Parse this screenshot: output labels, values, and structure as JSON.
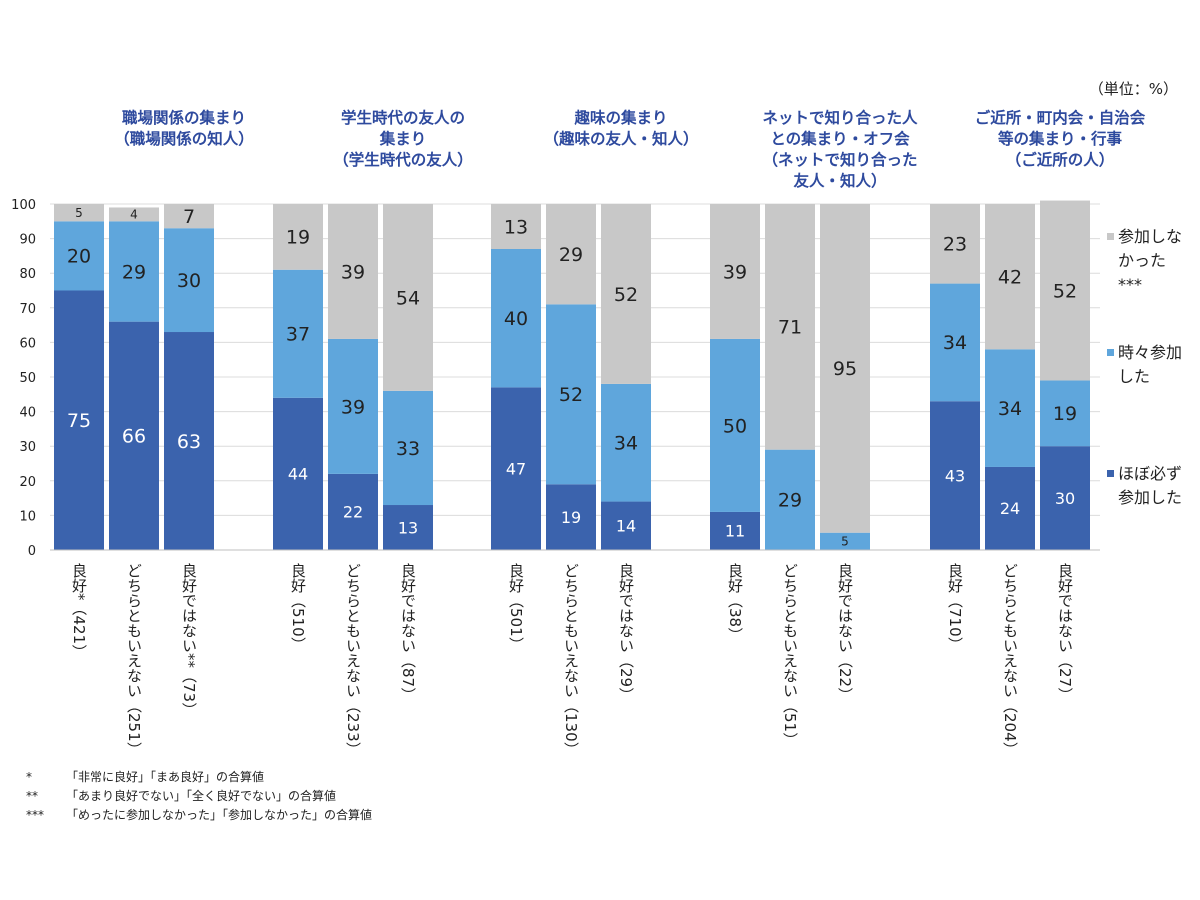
{
  "unit_label": "（単位：%）",
  "colors": {
    "always": "#3b63ad",
    "sometimes": "#5fa6dc",
    "none": "#c8c8c8",
    "group_title": "#2e4a9e"
  },
  "chart_data": {
    "type": "bar",
    "stacked": true,
    "ylim": [
      0,
      100
    ],
    "yticks": [
      0,
      10,
      20,
      30,
      40,
      50,
      60,
      70,
      80,
      90,
      100
    ],
    "grid": true,
    "legend_position": "right",
    "legend": [
      {
        "key": "none",
        "label_lines": [
          "参加しな",
          "かった",
          "***"
        ]
      },
      {
        "key": "sometimes",
        "label_lines": [
          "時々参加",
          "した"
        ]
      },
      {
        "key": "always",
        "label_lines": [
          "ほぼ必ず",
          "参加した"
        ]
      }
    ],
    "groups": [
      {
        "title_lines": [
          "職場関係の集まり",
          "（職場関係の知人）"
        ],
        "bars": [
          {
            "label": "良好*（421）",
            "always": 75,
            "sometimes": 20,
            "none": 5
          },
          {
            "label": "どちらともいえない（251）",
            "always": 66,
            "sometimes": 29,
            "none": 4
          },
          {
            "label": "良好ではない**（73）",
            "always": 63,
            "sometimes": 30,
            "none": 7
          }
        ]
      },
      {
        "title_lines": [
          "学生時代の友人の",
          "集まり",
          "（学生時代の友人）"
        ],
        "bars": [
          {
            "label": "良好（510）",
            "always": 44,
            "sometimes": 37,
            "none": 19
          },
          {
            "label": "どちらともいえない（233）",
            "always": 22,
            "sometimes": 39,
            "none": 39
          },
          {
            "label": "良好ではない（87）",
            "always": 13,
            "sometimes": 33,
            "none": 54
          }
        ]
      },
      {
        "title_lines": [
          "趣味の集まり",
          "（趣味の友人・知人）"
        ],
        "bars": [
          {
            "label": "良好（501）",
            "always": 47,
            "sometimes": 40,
            "none": 13
          },
          {
            "label": "どちらともいえない（130）",
            "always": 19,
            "sometimes": 52,
            "none": 29
          },
          {
            "label": "良好ではない（29）",
            "always": 14,
            "sometimes": 34,
            "none": 52
          }
        ]
      },
      {
        "title_lines": [
          "ネットで知り合った人",
          "との集まり・オフ会",
          "（ネットで知り合った",
          "友人・知人）"
        ],
        "bars": [
          {
            "label": "良好（38）",
            "always": 11,
            "sometimes": 50,
            "none": 39
          },
          {
            "label": "どちらともいえない（51）",
            "always": 0,
            "sometimes": 29,
            "none": 71
          },
          {
            "label": "良好ではない（22）",
            "always": 0,
            "sometimes": 5,
            "none": 95
          }
        ]
      },
      {
        "title_lines": [
          "ご近所・町内会・自治会",
          "等の集まり・行事",
          "（ご近所の人）"
        ],
        "bars": [
          {
            "label": "良好（710）",
            "always": 43,
            "sometimes": 34,
            "none": 23
          },
          {
            "label": "どちらともいえない（204）",
            "always": 24,
            "sometimes": 34,
            "none": 42
          },
          {
            "label": "良好ではない（27）",
            "always": 30,
            "sometimes": 19,
            "none": 52
          }
        ]
      }
    ]
  },
  "notes": [
    {
      "mark": "*",
      "text": "「非常に良好」「まあ良好」の合算値"
    },
    {
      "mark": "**",
      "text": "「あまり良好でない」「全く良好でない」の合算値"
    },
    {
      "mark": "***",
      "text": "「めったに参加しなかった」「参加しなかった」の合算値"
    }
  ]
}
